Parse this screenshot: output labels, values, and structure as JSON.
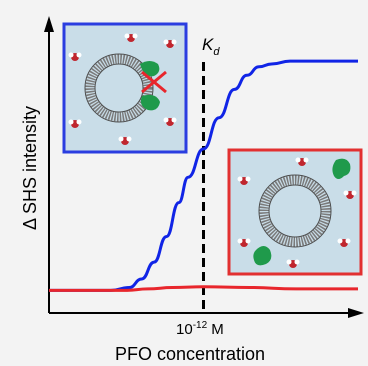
{
  "figure": {
    "background": "#f3f3f3",
    "inset_fill": "#c9dde8",
    "vesicle_ring_color": "#6f6f6f",
    "protein_color": "#1f9a4b",
    "water_oxygen_color": "#c0262e",
    "water_hydrogen_color": "#ffffff"
  },
  "chart_data": {
    "type": "line",
    "xlabel": "PFO concentration",
    "ylabel": "Δ SHS intensity",
    "marker_label_main": "K",
    "marker_label_sub": "d",
    "tick_label_base": "10",
    "tick_label_exp": "-12",
    "tick_label_unit": " M",
    "xlim": [
      0,
      1
    ],
    "ylim": [
      0,
      1
    ],
    "series": [
      {
        "color": "#1024e6",
        "x": [
          0.0,
          0.2,
          0.26,
          0.3,
          0.34,
          0.38,
          0.42,
          0.45,
          0.5,
          0.55,
          0.6,
          0.64,
          0.68,
          0.72,
          0.78,
          0.85,
          1.0
        ],
        "y": [
          0.08,
          0.08,
          0.09,
          0.12,
          0.18,
          0.27,
          0.39,
          0.48,
          0.58,
          0.69,
          0.79,
          0.84,
          0.87,
          0.88,
          0.89,
          0.89,
          0.89
        ]
      },
      {
        "color": "#e8262c",
        "x": [
          0.0,
          0.25,
          0.32,
          0.4,
          0.5,
          0.65,
          0.8,
          1.0
        ],
        "y": [
          0.08,
          0.08,
          0.085,
          0.09,
          0.093,
          0.09,
          0.085,
          0.085
        ]
      }
    ],
    "kd_x": 0.5,
    "insets": [
      {
        "border_color": "#2a3de0",
        "position": "top-left",
        "shows": "protein bound, blocked"
      },
      {
        "border_color": "#e23030",
        "position": "bottom-right",
        "shows": "free protein"
      }
    ]
  }
}
